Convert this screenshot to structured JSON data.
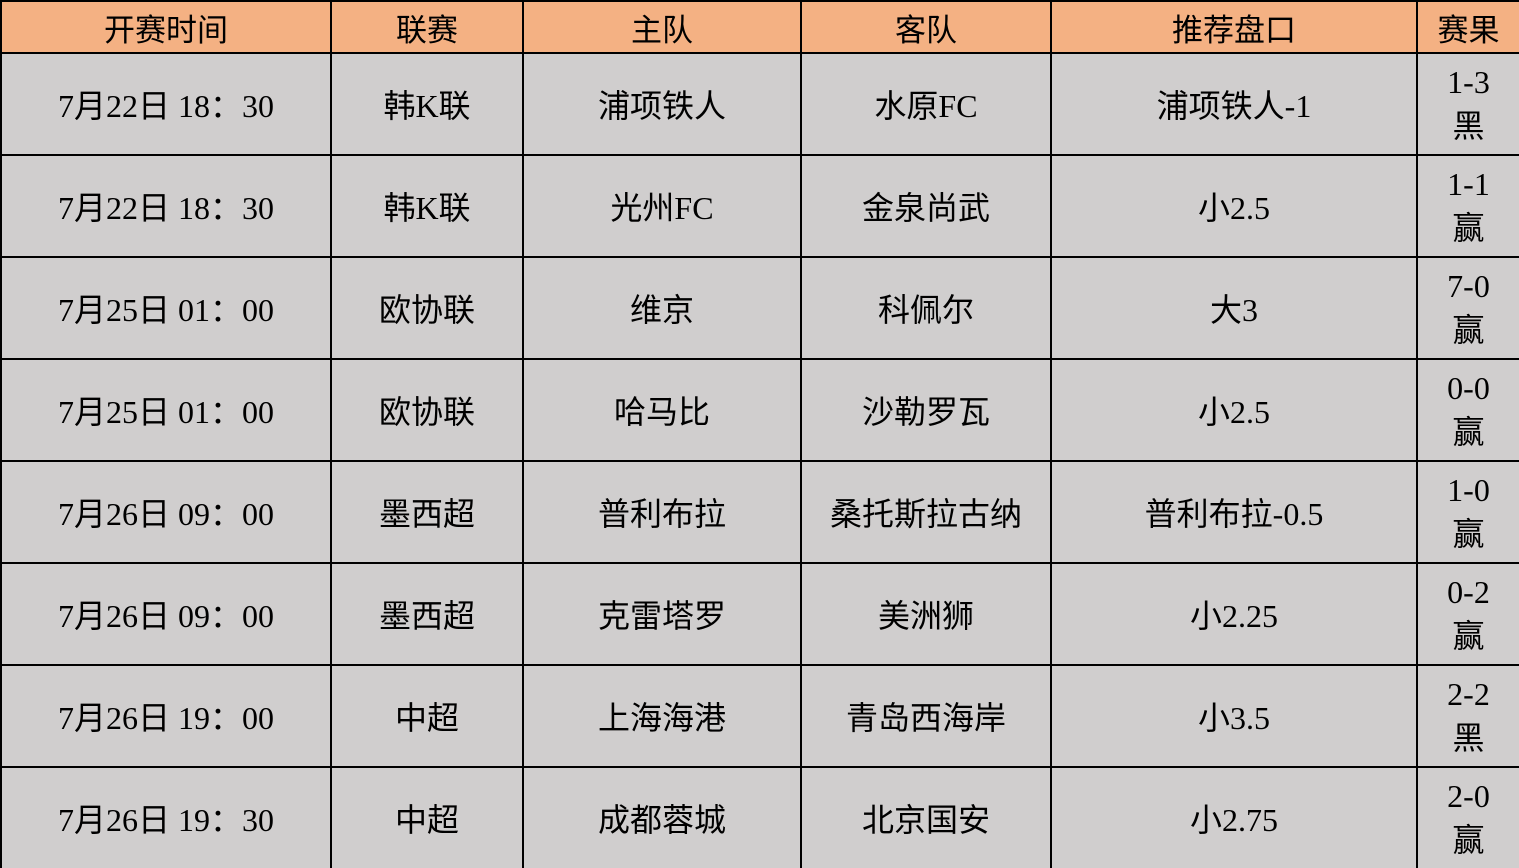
{
  "table": {
    "columns": [
      {
        "key": "time",
        "label": "开赛时间"
      },
      {
        "key": "league",
        "label": "联赛"
      },
      {
        "key": "home",
        "label": "主队"
      },
      {
        "key": "away",
        "label": "客队"
      },
      {
        "key": "handicap",
        "label": "推荐盘口"
      },
      {
        "key": "result",
        "label": "赛果"
      }
    ],
    "rows": [
      {
        "time": "7月22日 18：30",
        "league": "韩K联",
        "home": "浦项铁人",
        "away": "水原FC",
        "handicap": "浦项铁人-1",
        "result_score": "1-3",
        "result_verdict": "黑",
        "result_color": "black"
      },
      {
        "time": "7月22日 18：30",
        "league": "韩K联",
        "home": "光州FC",
        "away": "金泉尚武",
        "handicap": "小2.5",
        "result_score": "1-1",
        "result_verdict": "赢",
        "result_color": "red"
      },
      {
        "time": "7月25日 01：00",
        "league": "欧协联",
        "home": "维京",
        "away": "科佩尔",
        "handicap": "大3",
        "result_score": "7-0",
        "result_verdict": "赢",
        "result_color": "red"
      },
      {
        "time": "7月25日 01：00",
        "league": "欧协联",
        "home": "哈马比",
        "away": "沙勒罗瓦",
        "handicap": "小2.5",
        "result_score": "0-0",
        "result_verdict": "赢",
        "result_color": "red"
      },
      {
        "time": "7月26日 09：00",
        "league": "墨西超",
        "home": "普利布拉",
        "away": "桑托斯拉古纳",
        "handicap": "普利布拉-0.5",
        "result_score": "1-0",
        "result_verdict": "赢",
        "result_color": "red"
      },
      {
        "time": "7月26日 09：00",
        "league": "墨西超",
        "home": "克雷塔罗",
        "away": "美洲狮",
        "handicap": "小2.25",
        "result_score": "0-2",
        "result_verdict": "赢",
        "result_color": "red"
      },
      {
        "time": "7月26日 19：00",
        "league": "中超",
        "home": "上海海港",
        "away": "青岛西海岸",
        "handicap": "小3.5",
        "result_score": "2-2",
        "result_verdict": "黑",
        "result_color": "black"
      },
      {
        "time": "7月26日 19：30",
        "league": "中超",
        "home": "成都蓉城",
        "away": "北京国安",
        "handicap": "小2.75",
        "result_score": "2-0",
        "result_verdict": "赢",
        "result_color": "red"
      }
    ],
    "colors": {
      "header_bg": "#F4B183",
      "row_bg": "#D0CECE",
      "border": "#000000",
      "win_text": "#FF0000",
      "loss_text": "#000000"
    }
  }
}
